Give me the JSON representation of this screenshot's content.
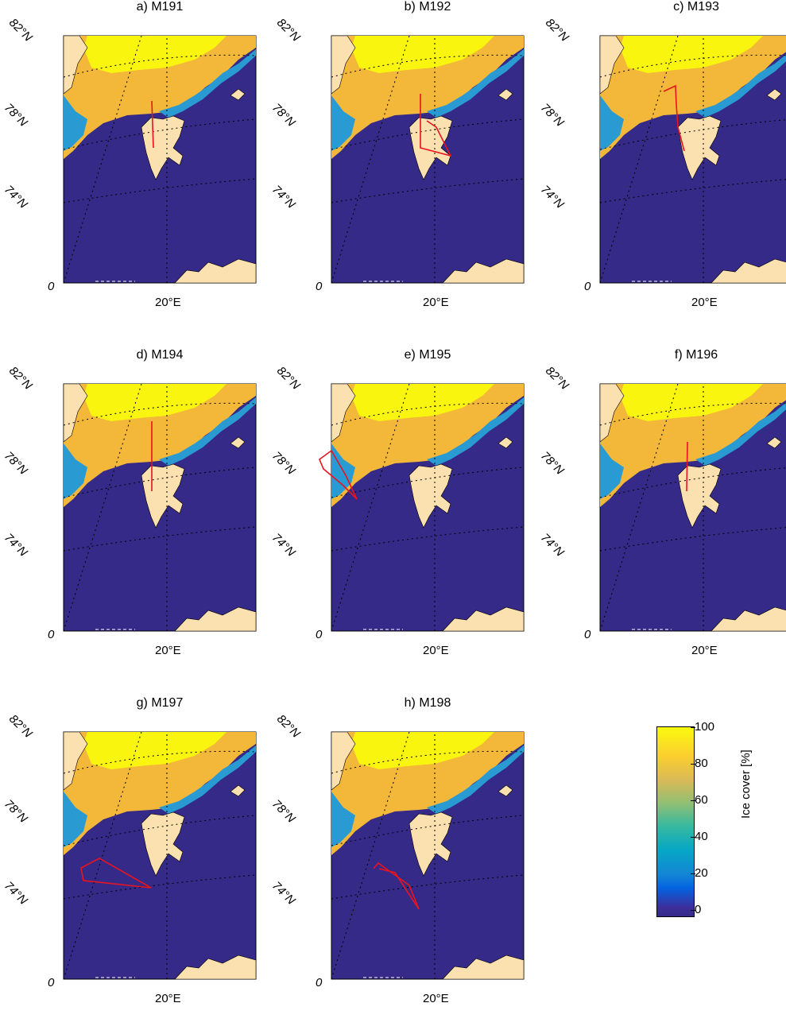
{
  "panels": [
    {
      "title": "a) M191",
      "lat_labels": [
        "82°N",
        "78°N",
        "74°N"
      ],
      "lon_label": "20°E",
      "corner_label": "0"
    },
    {
      "title": "b) M192",
      "lat_labels": [
        "82°N",
        "78°N",
        "74°N"
      ],
      "lon_label": "20°E",
      "corner_label": "0"
    },
    {
      "title": "c) M193",
      "lat_labels": [
        "82°N",
        "78°N",
        "74°N"
      ],
      "lon_label": "20°E",
      "corner_label": "0"
    },
    {
      "title": "d) M194",
      "lat_labels": [
        "82°N",
        "78°N",
        "74°N"
      ],
      "lon_label": "20°E",
      "corner_label": "0"
    },
    {
      "title": "e) M195",
      "lat_labels": [
        "82°N",
        "78°N",
        "74°N"
      ],
      "lon_label": "20°E",
      "corner_label": "0"
    },
    {
      "title": "f) M196",
      "lat_labels": [
        "82°N",
        "78°N",
        "74°N"
      ],
      "lon_label": "20°E",
      "corner_label": "0"
    },
    {
      "title": "g) M197",
      "lat_labels": [
        "82°N",
        "78°N",
        "74°N"
      ],
      "lon_label": "20°E",
      "corner_label": "0"
    },
    {
      "title": "h) M198",
      "lat_labels": [
        "82°N",
        "78°N",
        "74°N"
      ],
      "lon_label": "20°E",
      "corner_label": "0"
    }
  ],
  "colorbar": {
    "label": "Ice cover [%]",
    "ticks": [
      "100",
      "80",
      "60",
      "40",
      "20",
      "0"
    ]
  },
  "colors": {
    "ocean": "#352a87",
    "land": "#fbe0b0",
    "ice_high": "#f9f50f",
    "ice_mid": "#f3b73a",
    "ice_edge": "#2a9bd2",
    "track": "#e8141e"
  }
}
